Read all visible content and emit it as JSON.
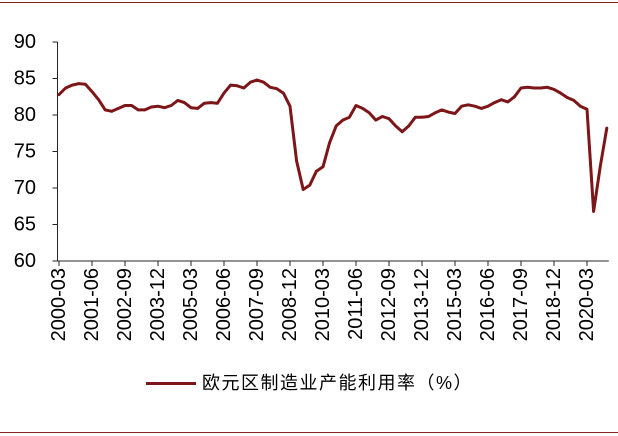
{
  "chart_data": {
    "type": "line",
    "title": "",
    "xlabel": "",
    "ylabel": "",
    "ylim": [
      60,
      90
    ],
    "yticks": [
      60,
      65,
      70,
      75,
      80,
      85,
      90
    ],
    "x_tick_labels": [
      "2000-03",
      "2001-06",
      "2002-09",
      "2003-12",
      "2005-03",
      "2006-06",
      "2007-09",
      "2008-12",
      "2010-03",
      "2011-06",
      "2012-09",
      "2013-12",
      "2015-03",
      "2016-06",
      "2017-09",
      "2018-12",
      "2020-03"
    ],
    "x": [
      "2000-03",
      "2000-06",
      "2000-09",
      "2000-12",
      "2001-03",
      "2001-06",
      "2001-09",
      "2001-12",
      "2002-03",
      "2002-06",
      "2002-09",
      "2002-12",
      "2003-03",
      "2003-06",
      "2003-09",
      "2003-12",
      "2004-03",
      "2004-06",
      "2004-09",
      "2004-12",
      "2005-03",
      "2005-06",
      "2005-09",
      "2005-12",
      "2006-03",
      "2006-06",
      "2006-09",
      "2006-12",
      "2007-03",
      "2007-06",
      "2007-09",
      "2007-12",
      "2008-03",
      "2008-06",
      "2008-09",
      "2008-12",
      "2009-03",
      "2009-06",
      "2009-09",
      "2009-12",
      "2010-03",
      "2010-06",
      "2010-09",
      "2010-12",
      "2011-03",
      "2011-06",
      "2011-09",
      "2011-12",
      "2012-03",
      "2012-06",
      "2012-09",
      "2012-12",
      "2013-03",
      "2013-06",
      "2013-09",
      "2013-12",
      "2014-03",
      "2014-06",
      "2014-09",
      "2014-12",
      "2015-03",
      "2015-06",
      "2015-09",
      "2015-12",
      "2016-03",
      "2016-06",
      "2016-09",
      "2016-12",
      "2017-03",
      "2017-06",
      "2017-09",
      "2017-12",
      "2018-03",
      "2018-06",
      "2018-09",
      "2018-12",
      "2019-03",
      "2019-06",
      "2019-09",
      "2019-12",
      "2020-03",
      "2020-06",
      "2020-09",
      "2020-12"
    ],
    "series": [
      {
        "name": "欧元区制造业产能利用率（%）",
        "values": [
          82.8,
          83.7,
          84.1,
          84.3,
          84.2,
          83.2,
          82.1,
          80.7,
          80.5,
          80.9,
          81.3,
          81.3,
          80.7,
          80.7,
          81.1,
          81.2,
          81.0,
          81.3,
          82.0,
          81.7,
          81.0,
          80.9,
          81.6,
          81.7,
          81.6,
          83.0,
          84.1,
          84.0,
          83.7,
          84.5,
          84.8,
          84.5,
          83.8,
          83.6,
          83.0,
          81.2,
          73.7,
          69.8,
          70.4,
          72.3,
          72.9,
          76.2,
          78.5,
          79.3,
          79.7,
          81.3,
          80.9,
          80.3,
          79.3,
          79.8,
          79.5,
          78.5,
          77.7,
          78.5,
          79.7,
          79.7,
          79.8,
          80.3,
          80.7,
          80.4,
          80.2,
          81.2,
          81.4,
          81.2,
          80.9,
          81.2,
          81.7,
          82.1,
          81.8,
          82.5,
          83.7,
          83.8,
          83.7,
          83.7,
          83.8,
          83.5,
          83.0,
          82.4,
          82.0,
          81.2,
          80.8,
          66.8,
          72.9,
          78.2
        ]
      }
    ],
    "grid": false,
    "legend": "bottom",
    "colors": {
      "series": "#7c1618",
      "axis": "#262626",
      "rule": "#8c2323"
    }
  }
}
